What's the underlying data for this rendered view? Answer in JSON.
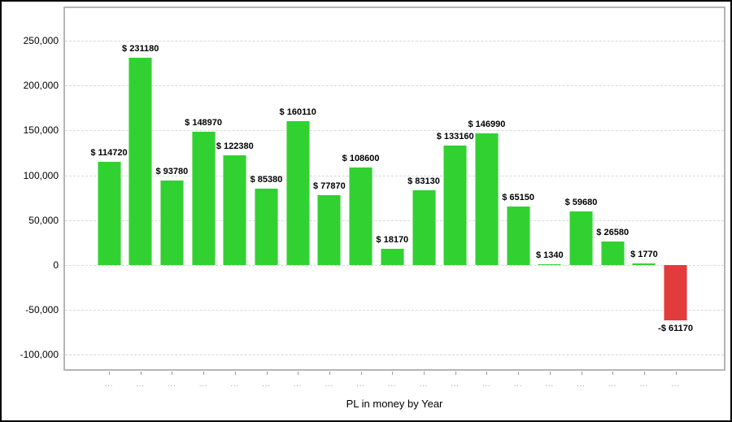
{
  "chart_data": {
    "type": "bar",
    "title": "",
    "xlabel": "PL in money by Year",
    "ylabel": "",
    "categories": [
      "...",
      "...",
      "...",
      "...",
      "...",
      "...",
      "...",
      "...",
      "...",
      "...",
      "...",
      "...",
      "...",
      "...",
      "...",
      "...",
      "...",
      "...",
      "..."
    ],
    "values": [
      114720,
      231180,
      93780,
      148970,
      122380,
      85380,
      160110,
      77870,
      108600,
      18170,
      83130,
      133160,
      146990,
      65150,
      1340,
      59680,
      26580,
      1770,
      -61170
    ],
    "bar_labels": [
      "$ 114720",
      "$ 231180",
      "$ 93780",
      "$ 148970",
      "$ 122380",
      "$ 85380",
      "$ 160110",
      "$ 77870",
      "$ 108600",
      "$ 18170",
      "$ 83130",
      "$ 133160",
      "$ 146990",
      "$ 65150",
      "$ 1340",
      "$ 59680",
      "$ 26580",
      "$ 1770",
      "-$ 61170"
    ],
    "y_ticks": [
      {
        "value": 250000,
        "label": "250,000"
      },
      {
        "value": 200000,
        "label": "200,000"
      },
      {
        "value": 150000,
        "label": "150,000"
      },
      {
        "value": 100000,
        "label": "100,000"
      },
      {
        "value": 50000,
        "label": "50,000"
      },
      {
        "value": 0,
        "label": "0"
      },
      {
        "value": -50000,
        "label": "-50,000"
      },
      {
        "value": -100000,
        "label": "-100,000"
      }
    ],
    "ylim": [
      -117500,
      288000
    ],
    "grid": "horizontal-dashed",
    "legend": "none",
    "colors": {
      "positive_bar": "#32d132",
      "negative_bar": "#e23b3c",
      "grid_line": "#d9d9d9",
      "plot_border": "#b5b5b5",
      "x_tick_label": "#8c8c8c",
      "value_label": "#000000",
      "outer_border": "#000000",
      "background": "#ffffff"
    }
  }
}
